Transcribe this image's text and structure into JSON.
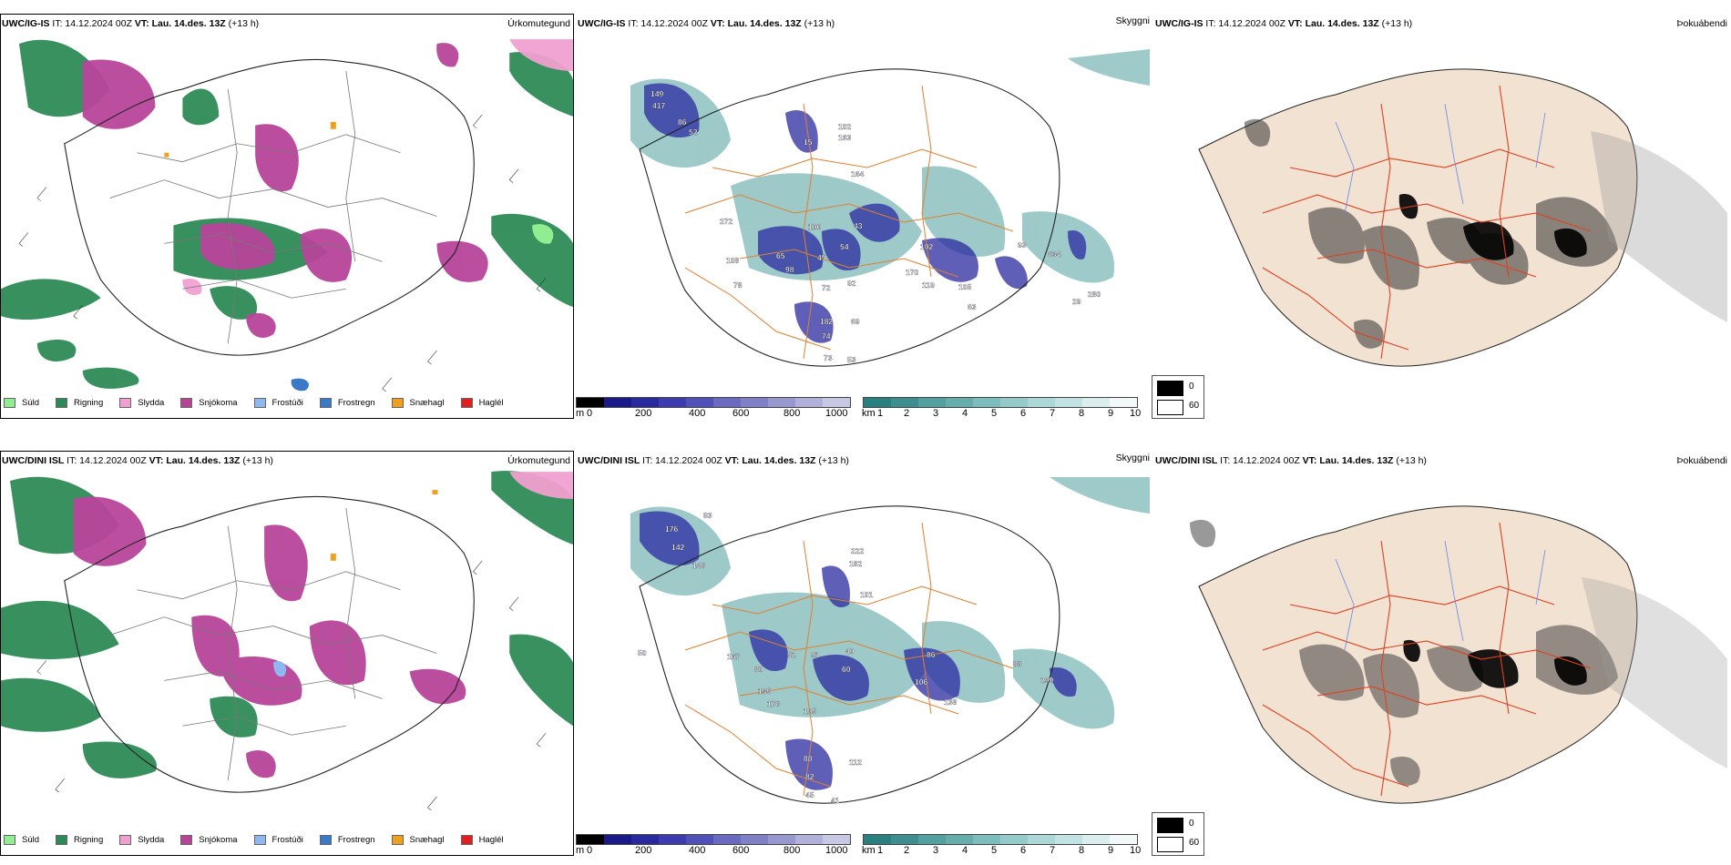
{
  "rows": [
    {
      "precip": {
        "model": "UWC/IG-IS",
        "it": " IT: 14.12.2024 00Z ",
        "vt_label": "VT:",
        "vt": " Lau. 14.des. 13Z",
        "lead": " (+13 h)",
        "right": "Úrkomutegund"
      },
      "cloud": {
        "model": "UWC/IG-IS",
        "it": " IT: 14.12.2024 00Z ",
        "vt_label": "VT:",
        "vt": " Lau. 14.des. 13Z",
        "lead": " (+13 h)",
        "right": "Skyggni"
      },
      "fog": {
        "model": "UWC/IG-IS",
        "it": " IT: 14.12.2024 00Z ",
        "vt_label": "VT:",
        "vt": " Lau. 14.des. 13Z",
        "lead": " (+13 h)",
        "right": "Þokuábendi"
      }
    },
    {
      "precip": {
        "model": "UWC/DINI ISL",
        "it": " IT: 14.12.2024 00Z ",
        "vt_label": "VT:",
        "vt": " Lau. 14.des. 13Z",
        "lead": " (+13 h)",
        "right": "Úrkomutegund"
      },
      "cloud": {
        "model": "UWC/DINI ISL",
        "it": " IT: 14.12.2024 00Z ",
        "vt_label": "VT:",
        "vt": " Lau. 14.des. 13Z",
        "lead": " (+13 h)",
        "right": "Skyggni"
      },
      "fog": {
        "model": "UWC/DINI ISL",
        "it": " IT: 14.12.2024 00Z ",
        "vt_label": "VT:",
        "vt": " Lau. 14.des. 13Z",
        "lead": " (+13 h)",
        "right": "Þokuábendi"
      }
    }
  ],
  "precip_legend": [
    {
      "label": "Súld",
      "color": "#90ee90"
    },
    {
      "label": "Rigning",
      "color": "#2e8b57"
    },
    {
      "label": "Slydda",
      "color": "#f0a0d0"
    },
    {
      "label": "Snjókoma",
      "color": "#b8449a"
    },
    {
      "label": "Frostúði",
      "color": "#8fb8f0"
    },
    {
      "label": "Frostregn",
      "color": "#3a78c8"
    },
    {
      "label": "Snæhagl",
      "color": "#f0a020"
    },
    {
      "label": "Haglél",
      "color": "#e02020"
    }
  ],
  "cloudbase_scale": {
    "unit": "m",
    "ticks": [
      "0",
      "200",
      "400",
      "600",
      "800",
      "1000"
    ],
    "colors": [
      "#000000",
      "#1a1a8a",
      "#2a2aa0",
      "#3c3cb0",
      "#5050b8",
      "#6a6ac0",
      "#8080c8",
      "#9898d0",
      "#b0b0d8",
      "#c8c8e4"
    ]
  },
  "visibility_scale": {
    "unit": "km",
    "ticks": [
      "1",
      "2",
      "3",
      "4",
      "5",
      "6",
      "7",
      "8",
      "9",
      "10"
    ],
    "colors": [
      "#2a7f7f",
      "#3d8f8f",
      "#52a0a0",
      "#66aeae",
      "#7dbdbd",
      "#93caca",
      "#abd7d7",
      "#c2e3e3",
      "#daeeee",
      "#f2f8f8"
    ]
  },
  "fog_legend": [
    {
      "label": "0",
      "color": "#000000"
    },
    {
      "label": "60",
      "color": "#ffffff"
    }
  ],
  "cloud_labels": [
    [
      "149",
      "417",
      "86",
      "52",
      "272",
      "108",
      "78",
      "65",
      "98",
      "45",
      "72",
      "74",
      "100",
      "43",
      "54",
      "92",
      "182",
      "69",
      "73",
      "53",
      "102",
      "170",
      "119",
      "105",
      "93",
      "634",
      "63",
      "280",
      "102",
      "163",
      "164",
      "15",
      "29"
    ],
    [
      "176",
      "142",
      "148",
      "83",
      "167",
      "52",
      "91",
      "40",
      "80",
      "135",
      "178",
      "105",
      "60",
      "86",
      "106",
      "138",
      "88",
      "299",
      "82",
      "88",
      "45",
      "41",
      "112",
      "101",
      "222",
      "182",
      "50"
    ]
  ],
  "colors": {
    "land": "#f2e2d2",
    "roads": "#e06020",
    "coast": "#222222",
    "rivers": "#6688ee",
    "rain": "#2e8b57",
    "snow": "#b8449a"
  }
}
